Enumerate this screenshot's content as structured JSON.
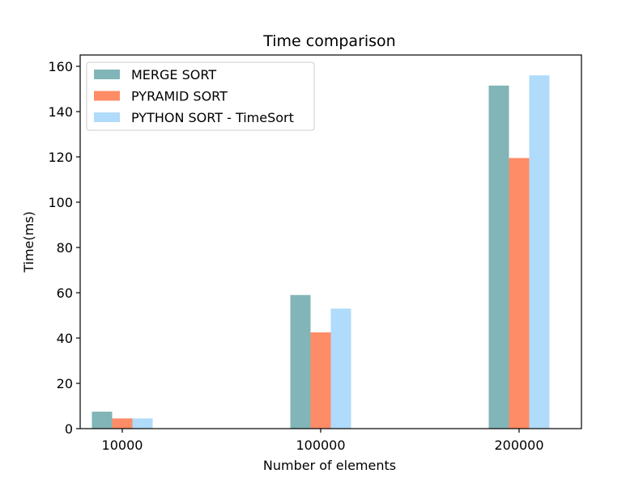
{
  "chart_data": {
    "type": "bar",
    "title": "Time comparison",
    "xlabel": "Number of elements",
    "ylabel": "Time(ms)",
    "categories": [
      "10000",
      "100000",
      "200000"
    ],
    "series": [
      {
        "name": "MERGE SORT",
        "color": "#81b5b7",
        "values": [
          7.5,
          59,
          151.5
        ]
      },
      {
        "name": "PYRAMID SORT",
        "color": "#fd8c67",
        "values": [
          4.5,
          42.5,
          119.5
        ]
      },
      {
        "name": "PYTHON SORT - TimeSort",
        "color": "#b0dbfa",
        "values": [
          4.5,
          53,
          156
        ]
      }
    ],
    "ylim": [
      0,
      165
    ],
    "yticks": [
      0,
      20,
      40,
      60,
      80,
      100,
      120,
      140,
      160
    ],
    "grid": false,
    "legend_position": "top-left"
  }
}
